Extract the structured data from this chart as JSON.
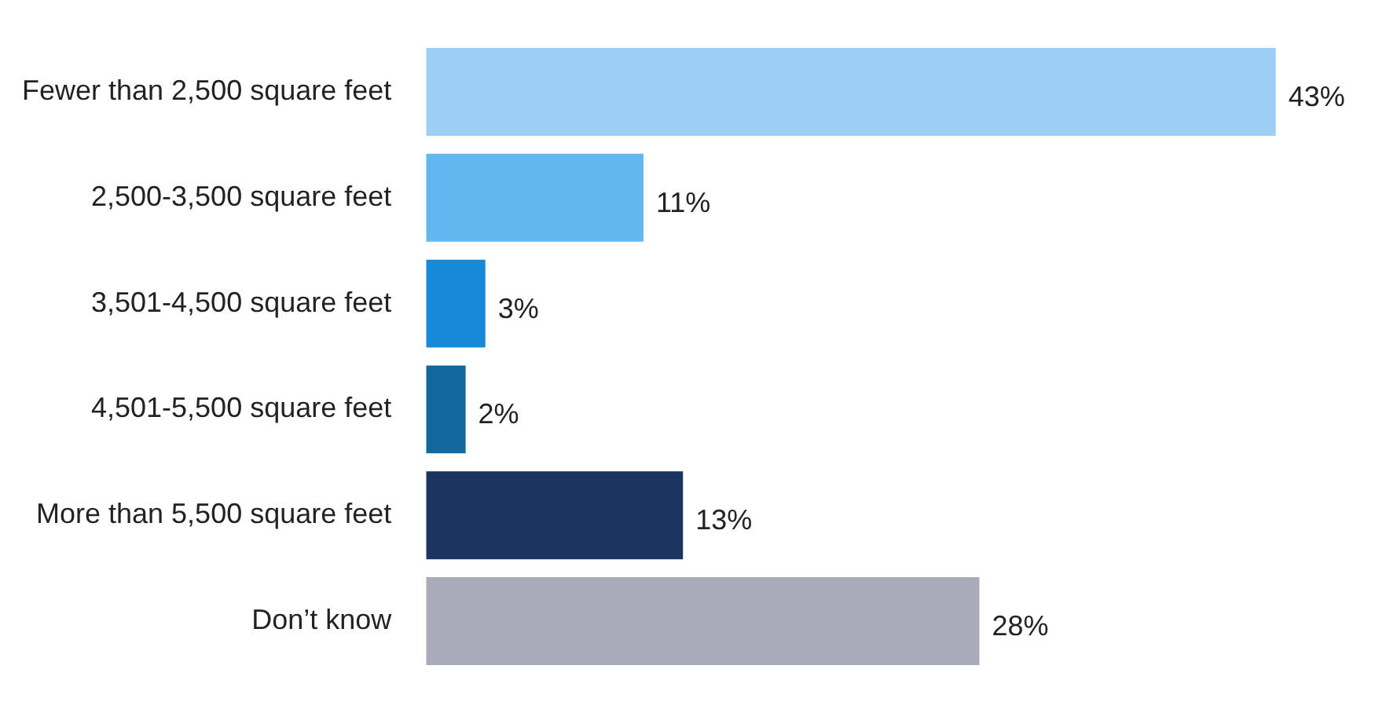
{
  "chart_data": {
    "type": "bar",
    "orientation": "horizontal",
    "categories": [
      "Fewer than 2,500 square feet",
      "2,500-3,500 square feet",
      "3,501-4,500 square feet",
      "4,501-5,500 square feet",
      "More than 5,500 square feet",
      "Don’t know"
    ],
    "values": [
      43,
      11,
      3,
      2,
      13,
      28
    ],
    "colors": [
      "#9dcff5",
      "#63b7f0",
      "#1789d9",
      "#13679f",
      "#1c3560",
      "#a9abbb"
    ],
    "value_labels": [
      "43%",
      "11%",
      "3%",
      "2%",
      "13%",
      "28%"
    ],
    "legend": false
  }
}
